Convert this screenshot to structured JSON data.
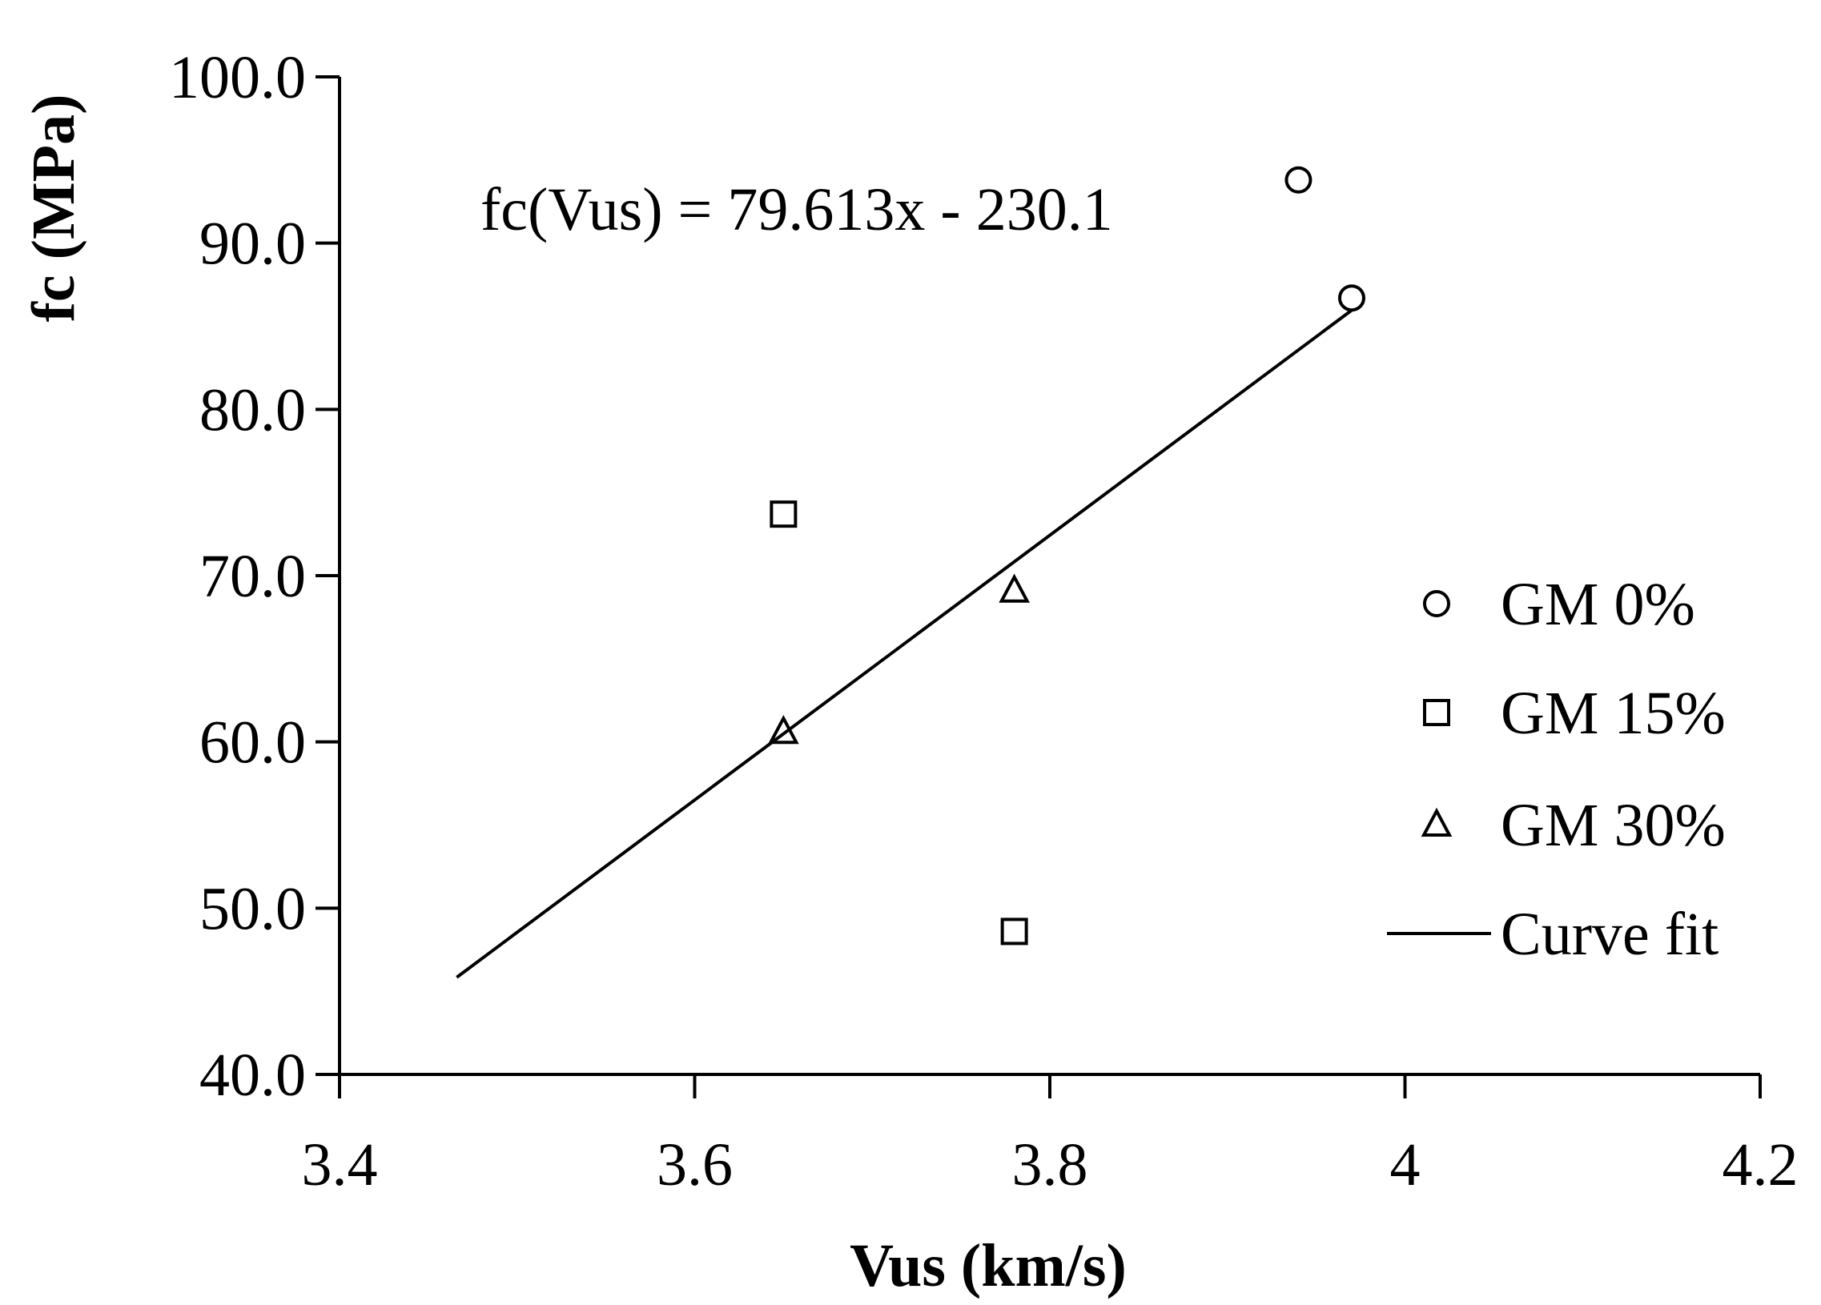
{
  "chart_data": {
    "type": "scatter",
    "xlabel": "Vus (km/s)",
    "ylabel": "fc (MPa)",
    "xlim": [
      3.4,
      4.2
    ],
    "ylim": [
      40.0,
      100.0
    ],
    "x_ticks": [
      "3.4",
      "3.6",
      "3.8",
      "4",
      "4.2"
    ],
    "x_tick_values": [
      3.4,
      3.6,
      3.8,
      4.0,
      4.2
    ],
    "y_ticks": [
      "40.0",
      "50.0",
      "60.0",
      "70.0",
      "80.0",
      "90.0",
      "100.0"
    ],
    "y_tick_values": [
      40,
      50,
      60,
      70,
      80,
      90,
      100
    ],
    "grid": false,
    "legend_position": "right",
    "annotation": "fc(Vus) = 79.613x - 230.1",
    "series": [
      {
        "name": "GM 0%",
        "marker": "circle",
        "points": [
          [
            3.94,
            93.8
          ],
          [
            3.97,
            86.7
          ]
        ]
      },
      {
        "name": "GM 15%",
        "marker": "square",
        "points": [
          [
            3.65,
            73.7
          ],
          [
            3.78,
            48.6
          ]
        ]
      },
      {
        "name": "GM 30%",
        "marker": "triangle",
        "points": [
          [
            3.65,
            60.6
          ],
          [
            3.78,
            69.1
          ]
        ]
      }
    ],
    "fit": {
      "name": "Curve fit",
      "slope": 79.613,
      "intercept": -230.1,
      "x_range": [
        3.466,
        3.97
      ]
    },
    "colors": {
      "marker_stroke": "#000000",
      "line": "#000000",
      "background": "#ffffff"
    }
  }
}
